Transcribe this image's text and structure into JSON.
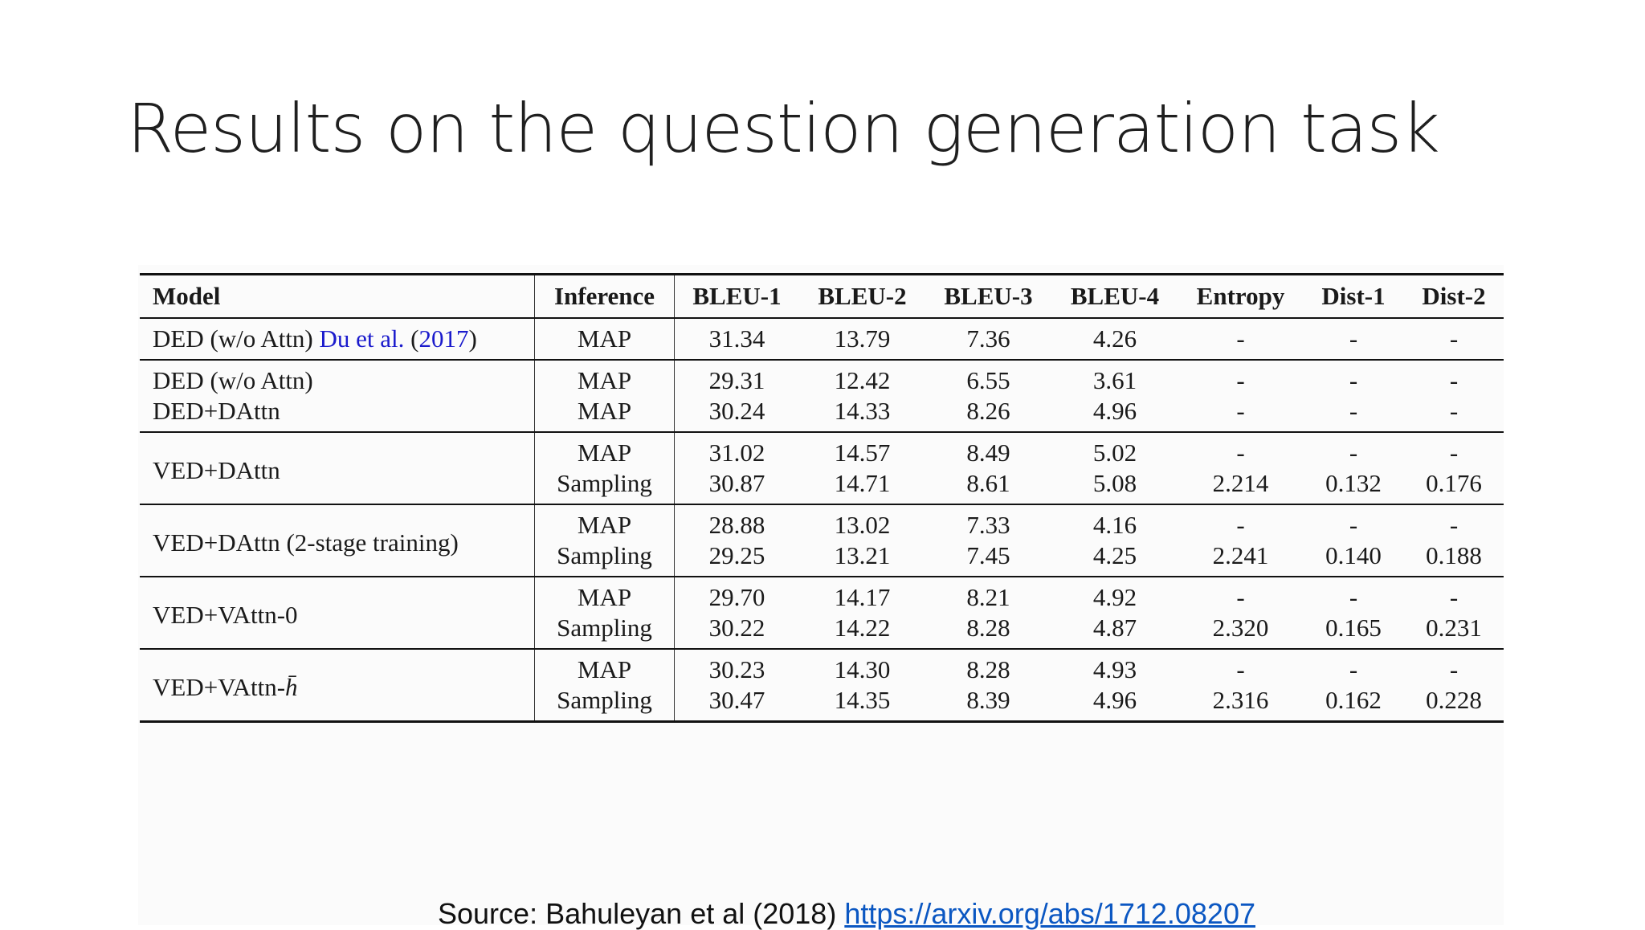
{
  "title": "Results on the question generation task",
  "table": {
    "headers": {
      "model": "Model",
      "inference": "Inference",
      "bleu1": "BLEU-1",
      "bleu2": "BLEU-2",
      "bleu3": "BLEU-3",
      "bleu4": "BLEU-4",
      "entropy": "Entropy",
      "dist1": "Dist-1",
      "dist2": "Dist-2"
    },
    "group1": {
      "model_prefix": "DED (w/o Attn) ",
      "cite_authors": "Du et al.",
      "cite_open": " (",
      "cite_year": "2017",
      "cite_close": ")",
      "inference": "MAP",
      "bleu1": "31.34",
      "bleu2": "13.79",
      "bleu3": "7.36",
      "bleu4": "4.26",
      "entropy": "-",
      "dist1": "-",
      "dist2": "-"
    },
    "group2": [
      {
        "model": "DED (w/o Attn)",
        "inference": "MAP",
        "bleu1": "29.31",
        "bleu2": "12.42",
        "bleu3": "6.55",
        "bleu4": "3.61",
        "entropy": "-",
        "dist1": "-",
        "dist2": "-"
      },
      {
        "model": "DED+DAttn",
        "inference": "MAP",
        "bleu1": "30.24",
        "bleu2": "14.33",
        "bleu3": "8.26",
        "bleu4": "4.96",
        "entropy": "-",
        "dist1": "-",
        "dist2": "-"
      }
    ],
    "group3": {
      "model": "VED+DAttn",
      "rows": [
        {
          "inference": "MAP",
          "bleu1": "31.02",
          "bleu2": "14.57",
          "bleu3": "8.49",
          "bleu4": "5.02",
          "entropy": "-",
          "dist1": "-",
          "dist2": "-"
        },
        {
          "inference": "Sampling",
          "bleu1": "30.87",
          "bleu2": "14.71",
          "bleu3": "8.61",
          "bleu4": "5.08",
          "entropy": "2.214",
          "dist1": "0.132",
          "dist2": "0.176"
        }
      ]
    },
    "group4": {
      "model": "VED+DAttn (2-stage training)",
      "rows": [
        {
          "inference": "MAP",
          "bleu1": "28.88",
          "bleu2": "13.02",
          "bleu3": "7.33",
          "bleu4": "4.16",
          "entropy": "-",
          "dist1": "-",
          "dist2": "-"
        },
        {
          "inference": "Sampling",
          "bleu1": "29.25",
          "bleu2": "13.21",
          "bleu3": "7.45",
          "bleu4": "4.25",
          "entropy": "2.241",
          "dist1": "0.140",
          "dist2": "0.188"
        }
      ]
    },
    "group5": {
      "model": "VED+VAttn-0",
      "rows": [
        {
          "inference": "MAP",
          "bleu1": "29.70",
          "bleu2": "14.17",
          "bleu3": "8.21",
          "bleu4": "4.92",
          "entropy": "-",
          "dist1": "-",
          "dist2": "-"
        },
        {
          "inference": "Sampling",
          "bleu1": "30.22",
          "bleu2": "14.22",
          "bleu3": "8.28",
          "bleu4": "4.87",
          "entropy": "2.320",
          "dist1": "0.165",
          "dist2": "0.231"
        }
      ]
    },
    "group6": {
      "model_prefix": "VED+VAttn-",
      "model_symbol": "h̄",
      "rows": [
        {
          "inference": "MAP",
          "bleu1": "30.23",
          "bleu2": "14.30",
          "bleu3": "8.28",
          "bleu4": "4.93",
          "entropy": "-",
          "dist1": "-",
          "dist2": "-"
        },
        {
          "inference": "Sampling",
          "bleu1": "30.47",
          "bleu2": "14.35",
          "bleu3": "8.39",
          "bleu4": "4.96",
          "entropy": "2.316",
          "dist1": "0.162",
          "dist2": "0.228"
        }
      ]
    }
  },
  "source": {
    "text": "Source: Bahuleyan et al (2018) ",
    "link": "https://arxiv.org/abs/1712.08207"
  }
}
